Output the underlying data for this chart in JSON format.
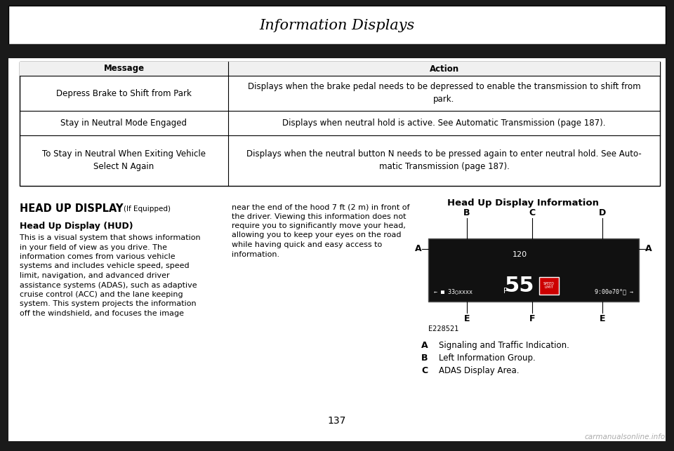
{
  "title": "Information Displays",
  "page_number": "137",
  "background_color": "#1a1a1a",
  "page_bg": "#ffffff",
  "table": {
    "header": [
      "Message",
      "Action"
    ],
    "rows": [
      [
        "Depress Brake to Shift from Park",
        "Displays when the brake pedal needs to be depressed to enable the transmission to shift from\npark."
      ],
      [
        "Stay in Neutral Mode Engaged",
        "Displays when neutral hold is active. See Automatic Transmission (page 187)."
      ],
      [
        "To Stay in Neutral When Exiting Vehicle\nSelect N Again",
        "Displays when the neutral button N needs to be pressed again to enter neutral hold. See Auto-\nmatic Transmission (page 187)."
      ]
    ],
    "bold_action_parts": [
      [],
      [
        "Automatic Transmission"
      ],
      [
        "Auto-\nmatic Transmission"
      ]
    ]
  },
  "left_section": {
    "heading": "HEAD UP DISPLAY",
    "heading_suffix": "(If Equipped)",
    "subheading": "Head Up Display (HUD)",
    "body_lines": [
      "This is a visual system that shows information",
      "in your field of view as you drive. The",
      "information comes from various vehicle",
      "systems and includes vehicle speed, speed",
      "limit, navigation, and advanced driver",
      "assistance systems (ADAS), such as adaptive",
      "cruise control (ACC) and the lane keeping",
      "system. This system projects the information",
      "off the windshield, and focuses the image"
    ]
  },
  "middle_section": {
    "body_lines": [
      "near the end of the hood 7 ft (2 m) in front of",
      "the driver. Viewing this information does not",
      "require you to significantly move your head,",
      "allowing you to keep your eyes on the road",
      "while having quick and easy access to",
      "information."
    ]
  },
  "right_section": {
    "heading": "Head Up Display Information",
    "diagram_label": "E228521",
    "legend": [
      [
        "A",
        "Signaling and Traffic Indication."
      ],
      [
        "B",
        "Left Information Group."
      ],
      [
        "C",
        "ADAS Display Area."
      ]
    ]
  },
  "watermark": "carmanualsonline.info"
}
